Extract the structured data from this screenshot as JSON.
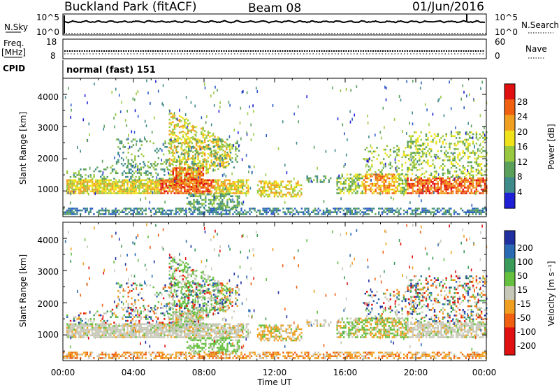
{
  "header": {
    "station": "Buckland Park (fitACF)",
    "beam": "Beam 08",
    "date": "01/Jun/2016"
  },
  "panels": {
    "nsky": {
      "label": "N.Sky",
      "left_ticks": [
        "10^5",
        "10^0"
      ],
      "right_ticks": [
        "10^5",
        "10^0"
      ],
      "right_label": "N.Search"
    },
    "freq": {
      "label_line1": "Freq.",
      "label_line2": "[MHz]",
      "left_ticks": [
        "18",
        "8"
      ],
      "right_ticks": [
        "60",
        "0"
      ],
      "right_label": "Nave"
    },
    "cpid": {
      "label": "CPID",
      "text": "normal (fast) 151"
    }
  },
  "colors": {
    "power": [
      "#1f1fd6",
      "#2a5cc6",
      "#3f8a8a",
      "#5aa05a",
      "#98c840",
      "#f0e21a",
      "#f0a020",
      "#f06010",
      "#e01010"
    ],
    "velocity": [
      "#e01010",
      "#f06010",
      "#f0a020",
      "#c8c8b8",
      "#c8c8b8",
      "#66c040",
      "#3a9a5a",
      "#2a6ab4",
      "#2030a0"
    ]
  },
  "chart_data": [
    {
      "type": "heatmap",
      "name_ref": "power",
      "xlabel": "",
      "ylabel": "Slant Range [km]",
      "xlim": [
        "00:00",
        "24:00"
      ],
      "ylim": [
        200,
        4500
      ],
      "y_ticks": [
        "1000",
        "2000",
        "3000",
        "4000"
      ],
      "colorbar": {
        "label": "Power [dB]",
        "ticks": [
          "4",
          "8",
          "12",
          "16",
          "20",
          "24",
          "28"
        ],
        "range": [
          0,
          32
        ]
      },
      "features": [
        {
          "t_start": 0.0,
          "t_end": 10.5,
          "range_km": [
            900,
            1400
          ],
          "level": "high"
        },
        {
          "t_start": 6.0,
          "t_end": 9.0,
          "range_km": [
            1200,
            3500
          ],
          "level": "high"
        },
        {
          "t_start": 11.0,
          "t_end": 13.5,
          "range_km": [
            900,
            1300
          ],
          "level": "medium"
        },
        {
          "t_start": 15.5,
          "t_end": 19.5,
          "range_km": [
            900,
            1500
          ],
          "level": "medium"
        },
        {
          "t_start": 19.5,
          "t_end": 24.0,
          "range_km": [
            900,
            2800
          ],
          "level": "high"
        }
      ]
    },
    {
      "type": "heatmap",
      "name_ref": "velocity",
      "xlabel": "Time UT",
      "ylabel": "Slant Range [km]",
      "xlim": [
        "00:00",
        "24:00"
      ],
      "ylim": [
        200,
        4500
      ],
      "x_ticks": [
        "00:00",
        "04:00",
        "08:00",
        "12:00",
        "16:00",
        "20:00",
        "00:00"
      ],
      "y_ticks": [
        "1000",
        "2000",
        "3000",
        "4000"
      ],
      "colorbar": {
        "label": "Velocity [m s⁻¹]",
        "ticks": [
          "200",
          "100",
          "50",
          "15",
          "-15",
          "-50",
          "-100",
          "-200"
        ],
        "range": [
          -250,
          250
        ]
      }
    }
  ]
}
